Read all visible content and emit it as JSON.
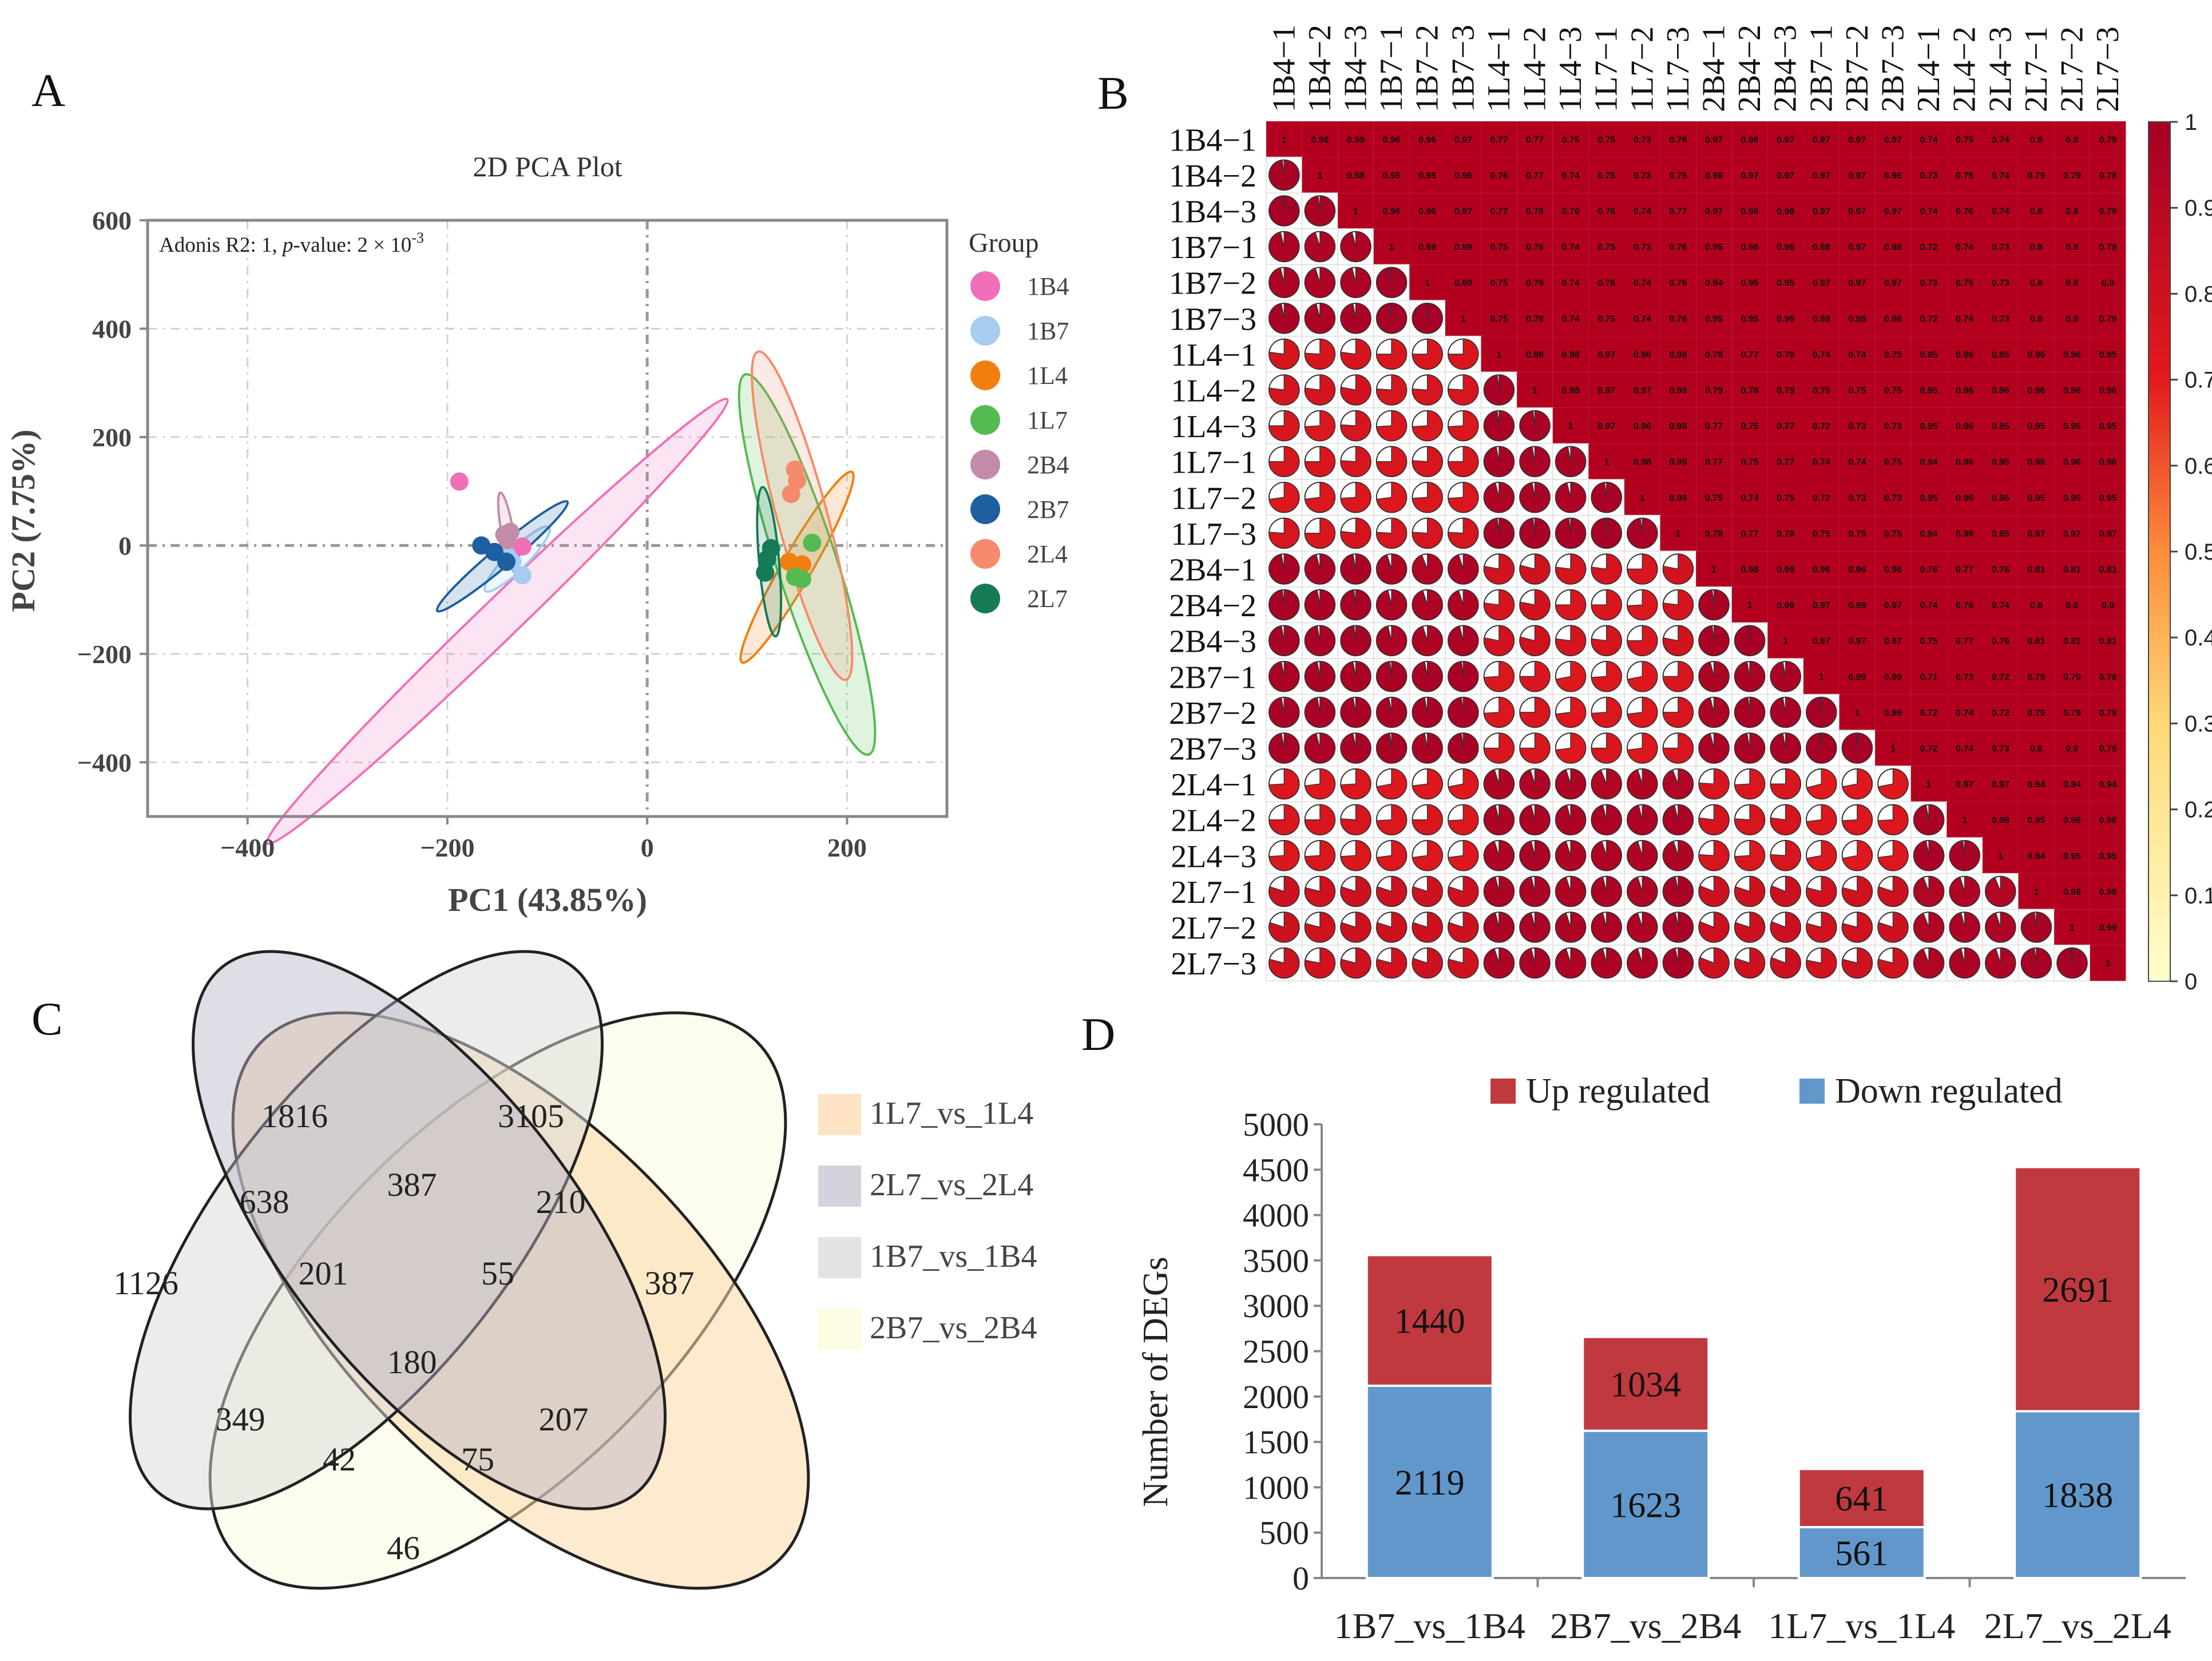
{
  "panels": {
    "a": "A",
    "b": "B",
    "c": "C",
    "d": "D"
  },
  "chart_data": [
    {
      "type": "scatter",
      "id": "pca",
      "title": "2D PCA Plot",
      "annotation_prefix": "Adonis R2: 1, ",
      "annotation_p": "p",
      "annotation_mid": "-value: 2 × 10",
      "annotation_exp": "-3",
      "xlabel": "PC1 (43.85%)",
      "ylabel": "PC2 (7.75%)",
      "xlim": [
        -500,
        300
      ],
      "ylim": [
        -500,
        600
      ],
      "xticks": [
        -400,
        -200,
        0,
        200
      ],
      "yticks": [
        -400,
        -200,
        0,
        200,
        400,
        600
      ],
      "xtick_labels": [
        "−400",
        "−200",
        "0",
        "200"
      ],
      "ytick_labels": [
        "−400",
        "−200",
        "0",
        "200",
        "400",
        "600"
      ],
      "legend_title": "Group",
      "groups": [
        {
          "name": "1B4",
          "color": "#f16fb9",
          "points": [
            [
              -188,
              118
            ],
            [
              -125,
              -2
            ]
          ],
          "ellipse": {
            "cx": -150,
            "cy": -140,
            "rx": 320,
            "ry": 20,
            "angle": -44
          }
        },
        {
          "name": "1B7",
          "color": "#a6cdf0",
          "points": [
            [
              -125,
              -55
            ],
            [
              -135,
              -30
            ],
            [
              -140,
              -20
            ]
          ],
          "ellipse": {
            "cx": -130,
            "cy": -25,
            "rx": 45,
            "ry": 10,
            "angle": -45
          }
        },
        {
          "name": "1L4",
          "color": "#f07f10",
          "points": [
            [
              142,
              -30
            ],
            [
              148,
              -40
            ],
            [
              155,
              -35
            ]
          ],
          "ellipse": {
            "cx": 150,
            "cy": -40,
            "rx": 110,
            "ry": 15,
            "angle": -60
          }
        },
        {
          "name": "1L7",
          "color": "#55bb50",
          "points": [
            [
              165,
              5
            ],
            [
              148,
              -58
            ],
            [
              155,
              -62
            ]
          ],
          "ellipse": {
            "cx": 160,
            "cy": -35,
            "rx": 200,
            "ry": 30,
            "angle": 72
          }
        },
        {
          "name": "2B4",
          "color": "#c48aaa",
          "points": [
            [
              -143,
              20
            ],
            [
              -140,
              10
            ],
            [
              -137,
              25
            ]
          ],
          "ellipse": {
            "cx": -140,
            "cy": 25,
            "rx": 40,
            "ry": 6,
            "angle": 80
          }
        },
        {
          "name": "2B7",
          "color": "#1d5fa0",
          "points": [
            [
              -166,
              0
            ],
            [
              -153,
              -12
            ],
            [
              -141,
              -30
            ]
          ],
          "ellipse": {
            "cx": -145,
            "cy": -20,
            "rx": 85,
            "ry": 10,
            "angle": -40
          }
        },
        {
          "name": "2L4",
          "color": "#f58b6c",
          "points": [
            [
              148,
              140
            ],
            [
              144,
              95
            ],
            [
              150,
              120
            ]
          ],
          "ellipse": {
            "cx": 155,
            "cy": 55,
            "rx": 170,
            "ry": 25,
            "angle": 75
          }
        },
        {
          "name": "2L7",
          "color": "#157b55",
          "points": [
            [
              118,
              -50
            ],
            [
              120,
              -25
            ],
            [
              124,
              -5
            ]
          ],
          "ellipse": {
            "cx": 122,
            "cy": -30,
            "rx": 75,
            "ry": 10,
            "angle": 85
          }
        }
      ]
    },
    {
      "type": "heatmap",
      "id": "correlation",
      "samples": [
        "1B4−1",
        "1B4−2",
        "1B4−3",
        "1B7−1",
        "1B7−2",
        "1B7−3",
        "1L4−1",
        "1L4−2",
        "1L4−3",
        "1L7−1",
        "1L7−2",
        "1L7−3",
        "2B4−1",
        "2B4−2",
        "2B4−3",
        "2B7−1",
        "2B7−2",
        "2B7−3",
        "2L4−1",
        "2L4−2",
        "2L4−3",
        "2L7−1",
        "2L7−2",
        "2L7−3"
      ],
      "upper_labels": [
        [
          "1",
          "0.98",
          "0.99",
          "0.96",
          "0.96",
          "0.97",
          "0.77",
          "0.77",
          "0.75",
          "0.75",
          "0.73",
          "0.76",
          "0.97",
          "0.98",
          "0.97",
          "0.97",
          "0.97",
          "0.97",
          "0.74",
          "0.75",
          "0.74",
          "0.8",
          "0.8",
          "0.79"
        ],
        [
          "",
          "1",
          "0.98",
          "0.95",
          "0.95",
          "0.96",
          "0.76",
          "0.77",
          "0.74",
          "0.75",
          "0.73",
          "0.75",
          "0.96",
          "0.97",
          "0.97",
          "0.97",
          "0.97",
          "0.96",
          "0.73",
          "0.75",
          "0.74",
          "0.79",
          "0.79",
          "0.78"
        ],
        [
          "",
          "",
          "1",
          "0.96",
          "0.96",
          "0.97",
          "0.77",
          "0.78",
          "0.76",
          "0.76",
          "0.74",
          "0.77",
          "0.97",
          "0.98",
          "0.98",
          "0.97",
          "0.97",
          "0.97",
          "0.74",
          "0.76",
          "0.74",
          "0.8",
          "0.8",
          "0.79"
        ],
        [
          "",
          "",
          "",
          "1",
          "0.99",
          "0.99",
          "0.75",
          "0.76",
          "0.74",
          "0.75",
          "0.73",
          "0.76",
          "0.95",
          "0.96",
          "0.96",
          "0.98",
          "0.97",
          "0.98",
          "0.72",
          "0.74",
          "0.73",
          "0.8",
          "0.8",
          "0.79"
        ],
        [
          "",
          "",
          "",
          "",
          "1",
          "0.99",
          "0.75",
          "0.76",
          "0.74",
          "0.76",
          "0.74",
          "0.76",
          "0.94",
          "0.95",
          "0.95",
          "0.97",
          "0.97",
          "0.97",
          "0.73",
          "0.75",
          "0.73",
          "0.8",
          "0.8",
          "0.8"
        ],
        [
          "",
          "",
          "",
          "",
          "",
          "1",
          "0.75",
          "0.76",
          "0.74",
          "0.75",
          "0.74",
          "0.76",
          "0.95",
          "0.95",
          "0.96",
          "0.98",
          "0.98",
          "0.98",
          "0.72",
          "0.74",
          "0.73",
          "0.8",
          "0.8",
          "0.79"
        ],
        [
          "",
          "",
          "",
          "",
          "",
          "",
          "1",
          "0.98",
          "0.98",
          "0.97",
          "0.96",
          "0.98",
          "0.78",
          "0.77",
          "0.78",
          "0.74",
          "0.74",
          "0.75",
          "0.95",
          "0.96",
          "0.95",
          "0.96",
          "0.96",
          "0.95"
        ],
        [
          "",
          "",
          "",
          "",
          "",
          "",
          "",
          "1",
          "0.98",
          "0.97",
          "0.97",
          "0.98",
          "0.79",
          "0.78",
          "0.79",
          "0.75",
          "0.75",
          "0.75",
          "0.95",
          "0.96",
          "0.96",
          "0.96",
          "0.96",
          "0.96"
        ],
        [
          "",
          "",
          "",
          "",
          "",
          "",
          "",
          "",
          "1",
          "0.97",
          "0.96",
          "0.98",
          "0.77",
          "0.75",
          "0.77",
          "0.72",
          "0.73",
          "0.73",
          "0.95",
          "0.96",
          "0.95",
          "0.95",
          "0.95",
          "0.95"
        ],
        [
          "",
          "",
          "",
          "",
          "",
          "",
          "",
          "",
          "",
          "1",
          "0.98",
          "0.99",
          "0.77",
          "0.75",
          "0.77",
          "0.74",
          "0.74",
          "0.75",
          "0.94",
          "0.96",
          "0.95",
          "0.96",
          "0.96",
          "0.96"
        ],
        [
          "",
          "",
          "",
          "",
          "",
          "",
          "",
          "",
          "",
          "",
          "1",
          "0.98",
          "0.75",
          "0.74",
          "0.75",
          "0.72",
          "0.73",
          "0.73",
          "0.95",
          "0.96",
          "0.95",
          "0.95",
          "0.95",
          "0.95"
        ],
        [
          "",
          "",
          "",
          "",
          "",
          "",
          "",
          "",
          "",
          "",
          "",
          "1",
          "0.78",
          "0.77",
          "0.78",
          "0.75",
          "0.75",
          "0.75",
          "0.94",
          "0.96",
          "0.95",
          "0.97",
          "0.97",
          "0.97"
        ],
        [
          "",
          "",
          "",
          "",
          "",
          "",
          "",
          "",
          "",
          "",
          "",
          "",
          "1",
          "0.98",
          "0.98",
          "0.96",
          "0.96",
          "0.96",
          "0.76",
          "0.77",
          "0.76",
          "0.81",
          "0.81",
          "0.81"
        ],
        [
          "",
          "",
          "",
          "",
          "",
          "",
          "",
          "",
          "",
          "",
          "",
          "",
          "",
          "1",
          "0.99",
          "0.97",
          "0.98",
          "0.97",
          "0.74",
          "0.76",
          "0.74",
          "0.8",
          "0.8",
          "0.8"
        ],
        [
          "",
          "",
          "",
          "",
          "",
          "",
          "",
          "",
          "",
          "",
          "",
          "",
          "",
          "",
          "1",
          "0.97",
          "0.97",
          "0.97",
          "0.75",
          "0.77",
          "0.76",
          "0.81",
          "0.81",
          "0.81"
        ],
        [
          "",
          "",
          "",
          "",
          "",
          "",
          "",
          "",
          "",
          "",
          "",
          "",
          "",
          "",
          "",
          "1",
          "0.99",
          "0.99",
          "0.71",
          "0.73",
          "0.72",
          "0.79",
          "0.79",
          "0.78"
        ],
        [
          "",
          "",
          "",
          "",
          "",
          "",
          "",
          "",
          "",
          "",
          "",
          "",
          "",
          "",
          "",
          "",
          "1",
          "0.99",
          "0.72",
          "0.74",
          "0.72",
          "0.79",
          "0.79",
          "0.79"
        ],
        [
          "",
          "",
          "",
          "",
          "",
          "",
          "",
          "",
          "",
          "",
          "",
          "",
          "",
          "",
          "",
          "",
          "",
          "1",
          "0.72",
          "0.74",
          "0.73",
          "0.8",
          "0.8",
          "0.79"
        ],
        [
          "",
          "",
          "",
          "",
          "",
          "",
          "",
          "",
          "",
          "",
          "",
          "",
          "",
          "",
          "",
          "",
          "",
          "",
          "1",
          "0.97",
          "0.97",
          "0.94",
          "0.94",
          "0.94"
        ],
        [
          "",
          "",
          "",
          "",
          "",
          "",
          "",
          "",
          "",
          "",
          "",
          "",
          "",
          "",
          "",
          "",
          "",
          "",
          "",
          "1",
          "0.98",
          "0.95",
          "0.96",
          "0.96"
        ],
        [
          "",
          "",
          "",
          "",
          "",
          "",
          "",
          "",
          "",
          "",
          "",
          "",
          "",
          "",
          "",
          "",
          "",
          "",
          "",
          "",
          "1",
          "0.94",
          "0.95",
          "0.95"
        ],
        [
          "",
          "",
          "",
          "",
          "",
          "",
          "",
          "",
          "",
          "",
          "",
          "",
          "",
          "",
          "",
          "",
          "",
          "",
          "",
          "",
          "",
          "1",
          "0.98",
          "0.98"
        ],
        [
          "",
          "",
          "",
          "",
          "",
          "",
          "",
          "",
          "",
          "",
          "",
          "",
          "",
          "",
          "",
          "",
          "",
          "",
          "",
          "",
          "",
          "",
          "1",
          "0.99"
        ],
        [
          "",
          "",
          "",
          "",
          "",
          "",
          "",
          "",
          "",
          "",
          "",
          "",
          "",
          "",
          "",
          "",
          "",
          "",
          "",
          "",
          "",
          "",
          "",
          "1"
        ]
      ],
      "colorbar_ticks": [
        "0",
        "0.1",
        "0.2",
        "0.3",
        "0.4",
        "0.5",
        "0.6",
        "0.7",
        "0.8",
        "0.9",
        "1"
      ]
    },
    {
      "type": "venn",
      "id": "venn",
      "sets": [
        {
          "name": "1L7_vs_1L4",
          "color": "#fde3c4"
        },
        {
          "name": "2L7_vs_2L4",
          "color": "#d5d2dc"
        },
        {
          "name": "1B7_vs_1B4",
          "color": "#e3e3e1"
        },
        {
          "name": "2B7_vs_2B4",
          "color": "#fbfce2"
        }
      ],
      "regions": [
        "1816",
        "3105",
        "1126",
        "387",
        "638",
        "387",
        "210",
        "201",
        "55",
        "180",
        "349",
        "207",
        "42",
        "75",
        "46"
      ]
    },
    {
      "type": "bar",
      "id": "degs",
      "stacked": true,
      "categories": [
        "1B7_vs_1B4",
        "2B7_vs_2B4",
        "1L7_vs_1L4",
        "2L7_vs_2L4"
      ],
      "series": [
        {
          "name": "Down regulated",
          "color": "#6297cb",
          "values": [
            2119,
            1623,
            561,
            1838
          ]
        },
        {
          "name": "Up regulated",
          "color": "#c0393f",
          "values": [
            1440,
            1034,
            641,
            2691
          ]
        }
      ],
      "ylabel": "Number of DEGs",
      "ylim": [
        0,
        5000
      ],
      "yticks": [
        "0",
        "500",
        "1000",
        "1500",
        "2000",
        "2500",
        "3000",
        "3500",
        "4000",
        "4500",
        "5000"
      ]
    }
  ]
}
